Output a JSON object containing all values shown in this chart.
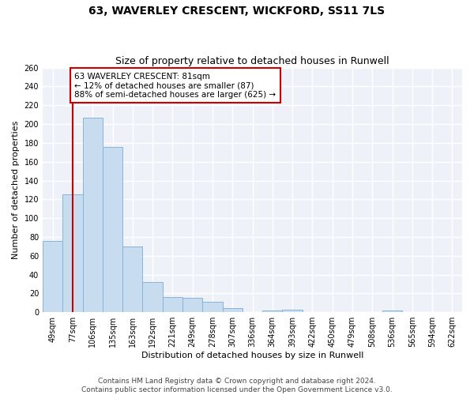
{
  "title": "63, WAVERLEY CRESCENT, WICKFORD, SS11 7LS",
  "subtitle": "Size of property relative to detached houses in Runwell",
  "xlabel": "Distribution of detached houses by size in Runwell",
  "ylabel": "Number of detached properties",
  "categories": [
    "49sqm",
    "77sqm",
    "106sqm",
    "135sqm",
    "163sqm",
    "192sqm",
    "221sqm",
    "249sqm",
    "278sqm",
    "307sqm",
    "336sqm",
    "364sqm",
    "393sqm",
    "422sqm",
    "450sqm",
    "479sqm",
    "508sqm",
    "536sqm",
    "565sqm",
    "594sqm",
    "622sqm"
  ],
  "values": [
    76,
    125,
    207,
    176,
    70,
    32,
    16,
    15,
    11,
    4,
    0,
    2,
    3,
    0,
    0,
    0,
    0,
    2,
    0,
    0,
    0
  ],
  "bar_color": "#c8dcf0",
  "bar_edge_color": "#89b4d8",
  "property_line_x": 1.0,
  "property_line_color": "#cc0000",
  "annotation_text": "63 WAVERLEY CRESCENT: 81sqm\n← 12% of detached houses are smaller (87)\n88% of semi-detached houses are larger (625) →",
  "annotation_box_color": "#ffffff",
  "annotation_box_edge_color": "#cc0000",
  "ylim": [
    0,
    260
  ],
  "yticks": [
    0,
    20,
    40,
    60,
    80,
    100,
    120,
    140,
    160,
    180,
    200,
    220,
    240,
    260
  ],
  "footer1": "Contains HM Land Registry data © Crown copyright and database right 2024.",
  "footer2": "Contains public sector information licensed under the Open Government Licence v3.0.",
  "background_color": "#eef2f8",
  "grid_color": "#ffffff",
  "title_fontsize": 10,
  "subtitle_fontsize": 9,
  "axis_label_fontsize": 8,
  "tick_fontsize": 7,
  "annotation_fontsize": 7.5,
  "footer_fontsize": 6.5
}
